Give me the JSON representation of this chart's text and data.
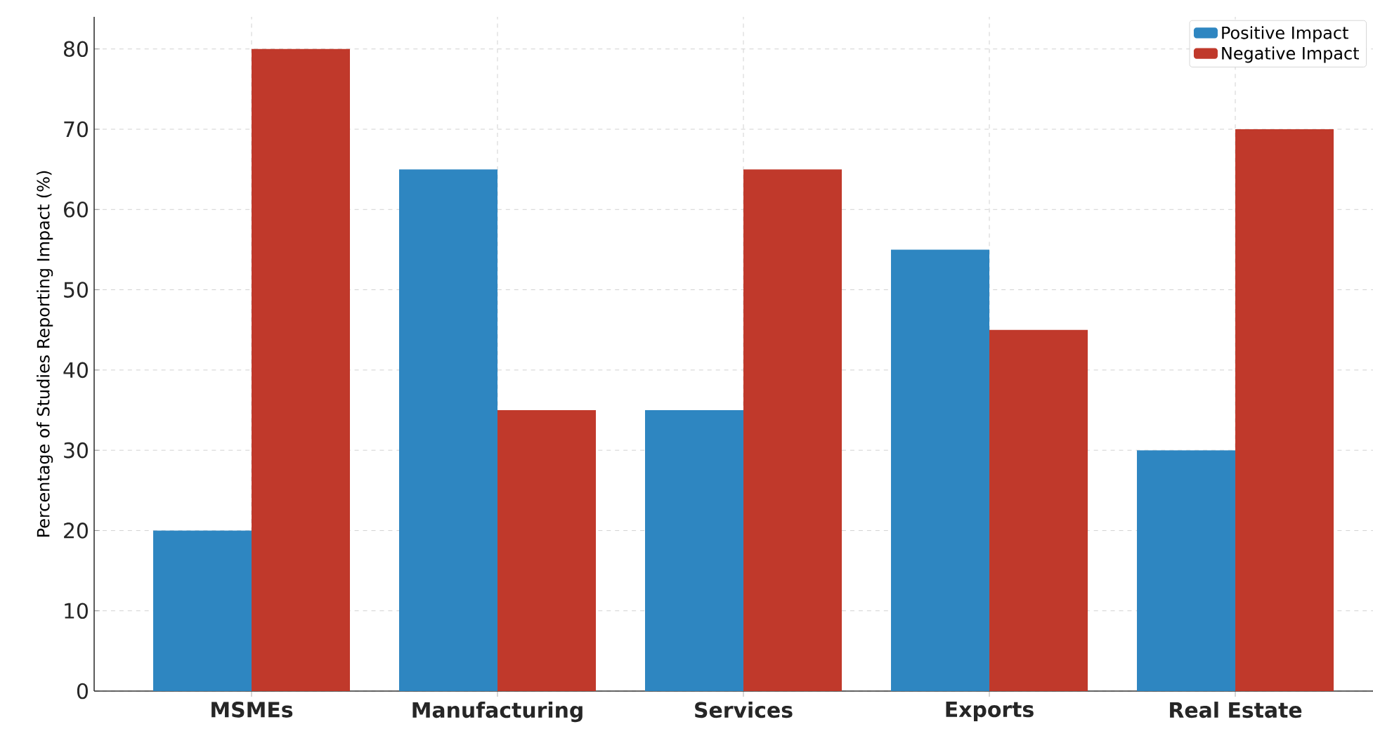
{
  "chart_data": {
    "type": "bar",
    "ylabel": "Percentage of Studies Reporting Impact (%)",
    "categories": [
      "MSMEs",
      "Manufacturing",
      "Services",
      "Exports",
      "Real Estate"
    ],
    "series": [
      {
        "name": "Positive Impact",
        "color": "#2e86c1",
        "values": [
          20,
          65,
          35,
          55,
          30
        ]
      },
      {
        "name": "Negative Impact",
        "color": "#c0392b",
        "values": [
          80,
          35,
          65,
          45,
          70
        ]
      }
    ],
    "ylim": [
      0,
      84
    ],
    "yticks": [
      0,
      10,
      20,
      30,
      40,
      50,
      60,
      70,
      80
    ],
    "grid": true,
    "legend": "top right"
  }
}
